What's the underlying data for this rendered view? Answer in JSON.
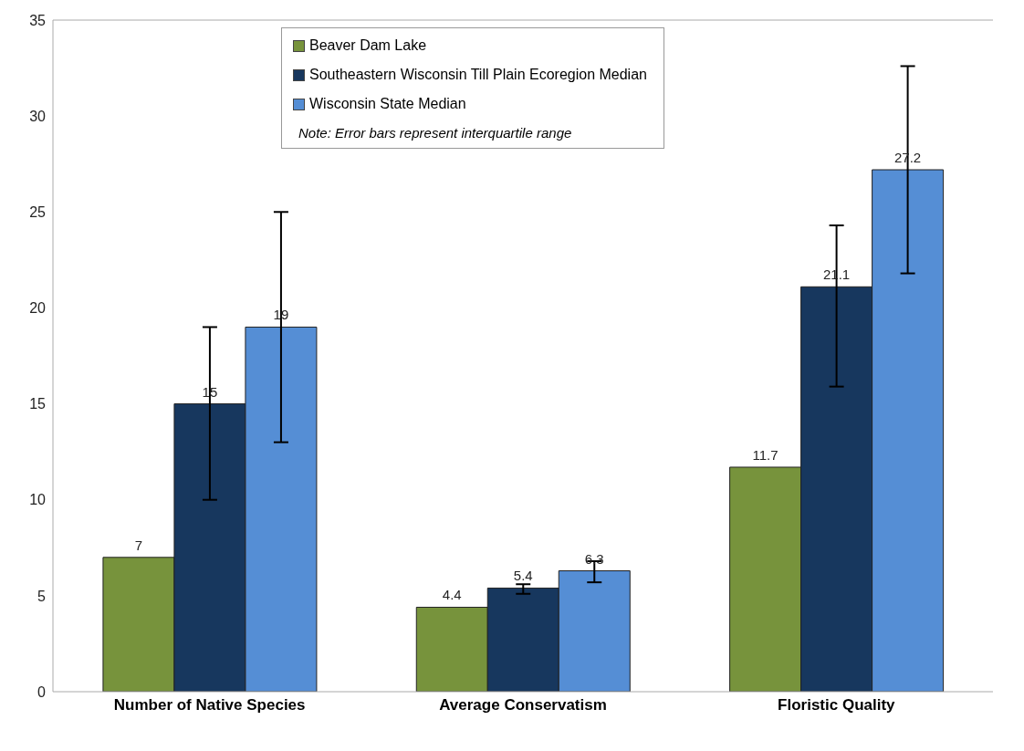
{
  "chart_data": {
    "type": "bar",
    "categories": [
      "Number of Native Species",
      "Average Conservatism",
      "Floristic Quality"
    ],
    "series": [
      {
        "name": "Beaver Dam Lake",
        "color": "#77933c",
        "values": [
          7,
          4.4,
          11.7
        ]
      },
      {
        "name": "Southeastern Wisconsin Till Plain Ecoregion Median",
        "color": "#17375e",
        "values": [
          15,
          5.4,
          21.1
        ],
        "errors": [
          [
            10,
            19
          ],
          [
            5.1,
            5.6
          ],
          [
            15.9,
            24.3
          ]
        ]
      },
      {
        "name": "Wisconsin State Median",
        "color": "#558ed5",
        "values": [
          19,
          6.3,
          27.2
        ],
        "errors": [
          [
            13,
            25
          ],
          [
            5.7,
            6.8
          ],
          [
            21.8,
            32.6
          ]
        ]
      }
    ],
    "ylim": [
      0,
      35
    ],
    "yticks": [
      0,
      5,
      10,
      15,
      20,
      25,
      30,
      35
    ],
    "grid": false,
    "legend": "top",
    "data_labels": true,
    "annotations": [
      "Note: Error bars represent interquartile range"
    ]
  }
}
